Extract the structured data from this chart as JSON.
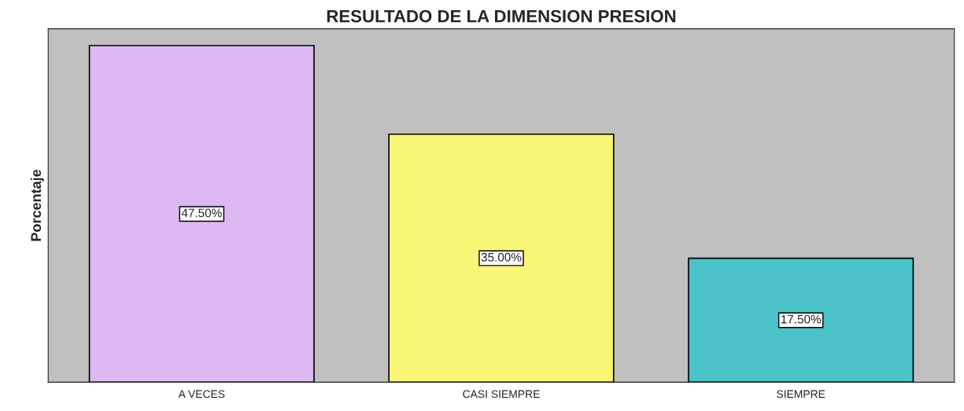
{
  "chart_data": {
    "type": "bar",
    "title": "RESULTADO DE LA DIMENSION PRESION",
    "ylabel": "Porcentaje",
    "categories": [
      "A VECES",
      "CASI SIEMPRE",
      "SIEMPRE"
    ],
    "values": [
      47.5,
      35.0,
      17.5
    ],
    "colors": [
      "#ddb8f2",
      "#f9f577",
      "#4bc2c8"
    ],
    "value_labels": [
      "47.50%",
      "35.00%",
      "17.50%"
    ],
    "tick_labels": "x",
    "grid": false,
    "legend": false
  }
}
